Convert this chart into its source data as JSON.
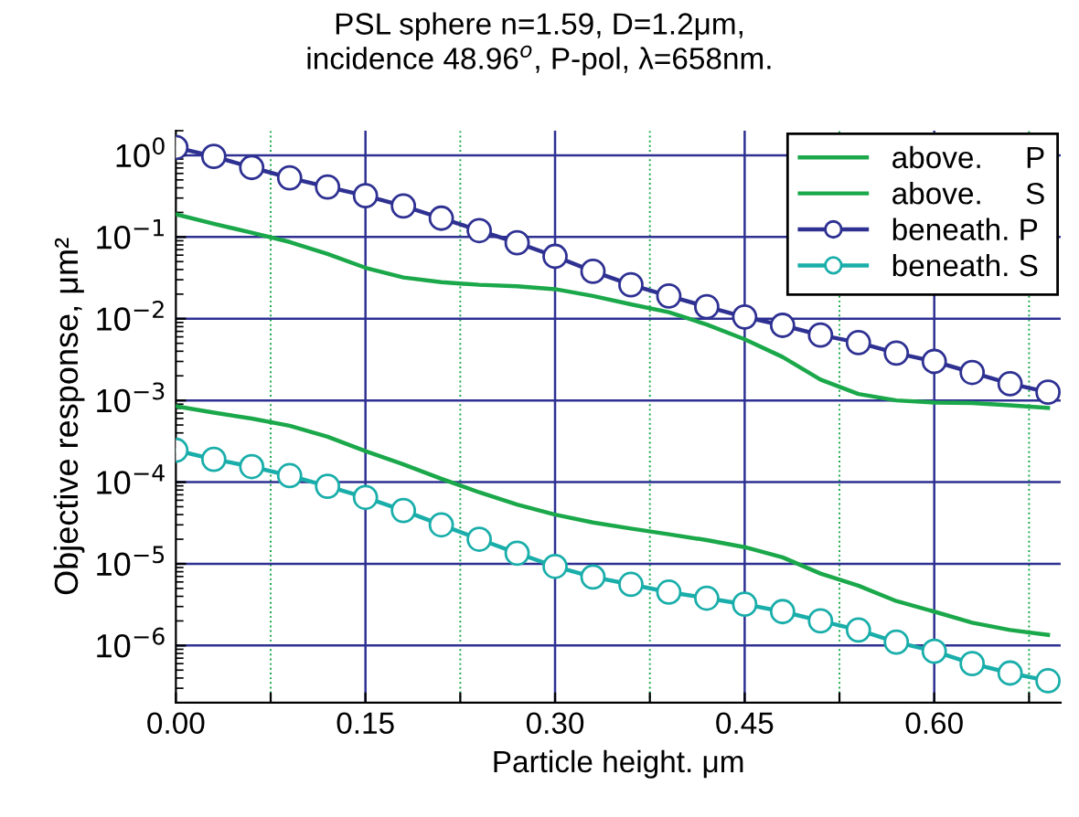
{
  "chart_data": {
    "type": "line",
    "title": "PSL sphere n=1.59, D=1.2μm,\nincidence 48.96$^{o}$, P-pol, λ=658nm.",
    "xlabel": "Particle height. μm",
    "ylabel": "Objective response, μm²",
    "x": [
      0,
      0.03,
      0.06,
      0.09,
      0.12,
      0.15,
      0.18,
      0.21,
      0.24,
      0.27,
      0.3,
      0.33,
      0.36,
      0.39,
      0.42,
      0.45,
      0.48,
      0.51,
      0.54,
      0.57,
      0.6,
      0.63,
      0.66,
      0.69
    ],
    "series": [
      {
        "name": "above.     P",
        "color": "#1aa84a",
        "marker": "none",
        "values": [
          0.19,
          0.145,
          0.113,
          0.087,
          0.062,
          0.042,
          0.032,
          0.028,
          0.026,
          0.025,
          0.023,
          0.019,
          0.015,
          0.012,
          0.0085,
          0.0056,
          0.0034,
          0.0018,
          0.0012,
          0.001,
          0.00094,
          0.00093,
          0.00087,
          0.00081
        ]
      },
      {
        "name": "above.     S",
        "color": "#1aa84a",
        "marker": "none",
        "values": [
          0.00085,
          0.00071,
          0.0006,
          0.00049,
          0.00036,
          0.00024,
          0.000165,
          0.00011,
          7.5e-05,
          5.3e-05,
          4e-05,
          3.2e-05,
          2.7e-05,
          2.3e-05,
          1.95e-05,
          1.6e-05,
          1.2e-05,
          7.6e-06,
          5.4e-06,
          3.5e-06,
          2.6e-06,
          1.9e-06,
          1.55e-06,
          1.35e-06
        ]
      },
      {
        "name": "beneath. P",
        "color": "#2e3192",
        "marker": "circle",
        "values": [
          1.25,
          0.97,
          0.71,
          0.53,
          0.41,
          0.32,
          0.24,
          0.17,
          0.12,
          0.085,
          0.058,
          0.038,
          0.026,
          0.019,
          0.014,
          0.0105,
          0.0083,
          0.0063,
          0.0051,
          0.0038,
          0.003,
          0.0022,
          0.0016,
          0.00126
        ]
      },
      {
        "name": "beneath. S",
        "color": "#1aaeaa",
        "marker": "circle",
        "values": [
          0.000245,
          0.00019,
          0.000155,
          0.00012,
          8.9e-05,
          6.5e-05,
          4.5e-05,
          3e-05,
          2e-05,
          1.35e-05,
          9.3e-06,
          6.9e-06,
          5.6e-06,
          4.5e-06,
          3.8e-06,
          3.2e-06,
          2.6e-06,
          2e-06,
          1.55e-06,
          1.1e-06,
          8.5e-07,
          6e-07,
          4.6e-07,
          3.7e-07
        ]
      }
    ],
    "log": "y",
    "xlim": [
      0,
      0.7
    ],
    "ylim": [
      2e-07,
      2
    ],
    "xticks": [
      {
        "value": 0,
        "label": "0.00"
      },
      {
        "value": 0.075,
        "label": null
      },
      {
        "value": 0.15,
        "label": "0.15"
      },
      {
        "value": 0.225,
        "label": null
      },
      {
        "value": 0.3,
        "label": "0.30"
      },
      {
        "value": 0.375,
        "label": null
      },
      {
        "value": 0.45,
        "label": "0.45"
      },
      {
        "value": 0.525,
        "label": null
      },
      {
        "value": 0.6,
        "label": "0.60"
      },
      {
        "value": 0.675,
        "label": null
      }
    ],
    "yticks": [
      {
        "value": 1e-06,
        "label": "10$^{−6}$"
      },
      {
        "value": 1e-05,
        "label": "10$^{−5}$"
      },
      {
        "value": 0.0001,
        "label": "10$^{−4}$"
      },
      {
        "value": 0.001,
        "label": "10$^{−3}$"
      },
      {
        "value": 0.01,
        "label": "10$^{−2}$"
      },
      {
        "value": 0.1,
        "label": "10$^{−1}$"
      },
      {
        "value": 1,
        "label": "10$^{0}$"
      }
    ],
    "grid": true,
    "legend": "top right",
    "line_style": "solid"
  }
}
